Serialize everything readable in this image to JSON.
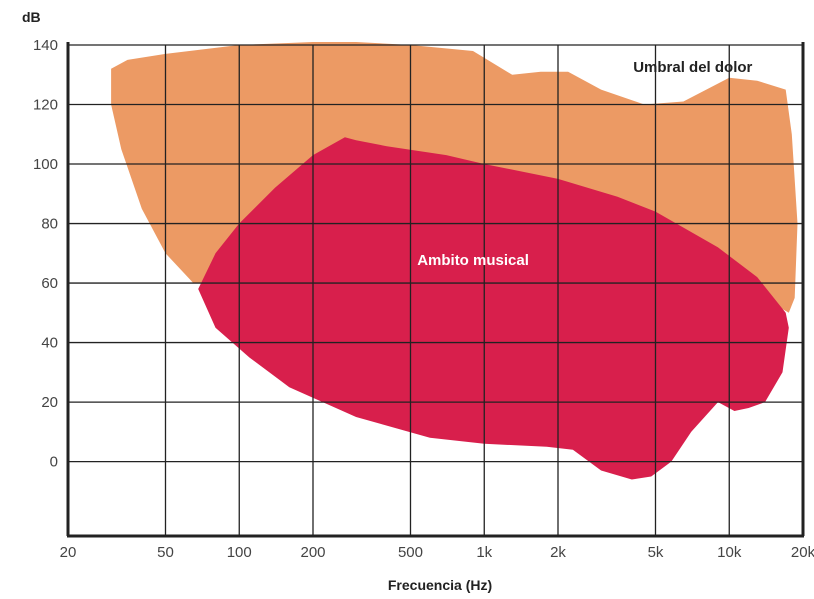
{
  "chart_data": {
    "type": "area",
    "xscale": "log",
    "xlim": [
      20,
      20000
    ],
    "ylim": [
      -25,
      140
    ],
    "ylabel": "dB",
    "xlabel": "Frecuencia (Hz)",
    "xticks": [
      {
        "value": 20,
        "label": "20"
      },
      {
        "value": 50,
        "label": "50"
      },
      {
        "value": 100,
        "label": "100"
      },
      {
        "value": 200,
        "label": "200"
      },
      {
        "value": 500,
        "label": "500"
      },
      {
        "value": 1000,
        "label": "1k"
      },
      {
        "value": 2000,
        "label": "2k"
      },
      {
        "value": 5000,
        "label": "5k"
      },
      {
        "value": 10000,
        "label": "10k"
      },
      {
        "value": 20000,
        "label": "20k"
      }
    ],
    "yticks": [
      {
        "value": 0,
        "label": "0"
      },
      {
        "value": 20,
        "label": "20"
      },
      {
        "value": 40,
        "label": "40"
      },
      {
        "value": 60,
        "label": "60"
      },
      {
        "value": 80,
        "label": "80"
      },
      {
        "value": 100,
        "label": "100"
      },
      {
        "value": 120,
        "label": "120"
      },
      {
        "value": 140,
        "label": "140"
      }
    ],
    "grid": true,
    "colors": {
      "umbral_del_dolor": "#ec9a64",
      "ambito_musical": "#d81f4c",
      "grid": "#222222"
    },
    "regions": [
      {
        "key": "umbral_del_dolor",
        "label": "Umbral del dolor",
        "label_color": "#222222",
        "label_at": [
          7100,
          131
        ],
        "outline": [
          [
            30,
            132
          ],
          [
            35,
            135
          ],
          [
            50,
            137
          ],
          [
            100,
            140
          ],
          [
            200,
            141
          ],
          [
            300,
            141
          ],
          [
            500,
            140
          ],
          [
            900,
            138
          ],
          [
            1300,
            130
          ],
          [
            1700,
            131
          ],
          [
            2200,
            131
          ],
          [
            3000,
            125
          ],
          [
            4500,
            120
          ],
          [
            6500,
            121
          ],
          [
            10000,
            129
          ],
          [
            13000,
            128
          ],
          [
            17000,
            125
          ],
          [
            18000,
            110
          ],
          [
            19000,
            80
          ],
          [
            18500,
            55
          ],
          [
            17500,
            50
          ],
          [
            12000,
            58
          ],
          [
            6000,
            65
          ],
          [
            2000,
            68
          ],
          [
            700,
            66
          ],
          [
            250,
            64
          ],
          [
            120,
            62
          ],
          [
            65,
            60
          ],
          [
            50,
            70
          ],
          [
            40,
            85
          ],
          [
            33,
            105
          ],
          [
            30,
            120
          ],
          [
            30,
            132
          ]
        ]
      },
      {
        "key": "ambito_musical",
        "label": "Ambito musical",
        "label_color": "#ffffff",
        "label_at": [
          900,
          66
        ],
        "outline": [
          [
            68,
            58
          ],
          [
            80,
            70
          ],
          [
            100,
            80
          ],
          [
            140,
            92
          ],
          [
            200,
            103
          ],
          [
            270,
            109
          ],
          [
            300,
            108
          ],
          [
            400,
            106
          ],
          [
            700,
            103
          ],
          [
            1000,
            100
          ],
          [
            2000,
            95
          ],
          [
            3500,
            89
          ],
          [
            5000,
            84
          ],
          [
            9000,
            72
          ],
          [
            13000,
            62
          ],
          [
            17000,
            50
          ],
          [
            17500,
            45
          ],
          [
            16500,
            30
          ],
          [
            14000,
            20
          ],
          [
            12000,
            18
          ],
          [
            10500,
            17
          ],
          [
            9000,
            20
          ],
          [
            7000,
            10
          ],
          [
            5800,
            0
          ],
          [
            4800,
            -5
          ],
          [
            4000,
            -6
          ],
          [
            3000,
            -3
          ],
          [
            2300,
            4
          ],
          [
            1800,
            5
          ],
          [
            1000,
            6
          ],
          [
            600,
            8
          ],
          [
            300,
            15
          ],
          [
            160,
            25
          ],
          [
            110,
            35
          ],
          [
            80,
            45
          ],
          [
            68,
            58
          ]
        ]
      }
    ]
  }
}
